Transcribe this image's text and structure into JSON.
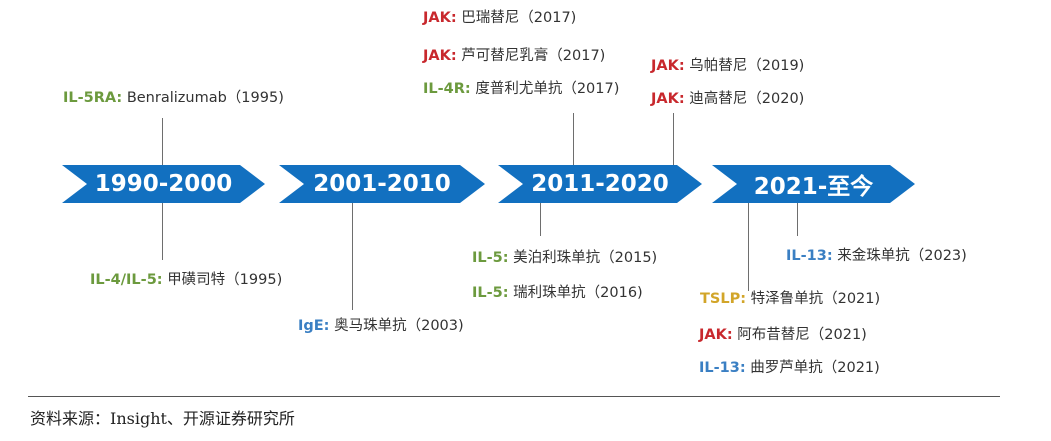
{
  "colors": {
    "chevron": "#1270c0",
    "JAK": "#c8282d",
    "IL": "#6c9a3e",
    "IL-13/IgE": "#3a7fc3",
    "TSLP": "#d2a529"
  },
  "periods": [
    "1990-2000",
    "2001-2010",
    "2011-2020",
    "2021-至今"
  ],
  "events": [
    {
      "target": "IL-5RA:",
      "drug": "Benralizumab（1995)"
    },
    {
      "target": "IL-4/IL-5:",
      "drug": "甲磺司特（1995)"
    },
    {
      "target": "IgE:",
      "drug": "奥马珠单抗（2003)"
    },
    {
      "target": "JAK:",
      "drug": "巴瑞替尼（2017)"
    },
    {
      "target": "JAK:",
      "drug": "芦可替尼乳膏（2017)"
    },
    {
      "target": "IL-4R:",
      "drug": "度普利尤单抗（2017)"
    },
    {
      "target": "JAK:",
      "drug": "乌帕替尼（2019)"
    },
    {
      "target": "JAK:",
      "drug": "迪高替尼（2020)"
    },
    {
      "target": "IL-5:",
      "drug": "美泊利珠单抗（2015)"
    },
    {
      "target": "IL-5:",
      "drug": "瑞利珠单抗（2016)"
    },
    {
      "target": "IL-13:",
      "drug": "来金珠单抗（2023)"
    },
    {
      "target": "TSLP:",
      "drug": "特泽鲁单抗（2021)"
    },
    {
      "target": "JAK:",
      "drug": "阿布昔替尼（2021)"
    },
    {
      "target": "IL-13:",
      "drug": "曲罗芦单抗（2021)"
    }
  ],
  "source": "资料来源：Insight、开源证券研究所"
}
